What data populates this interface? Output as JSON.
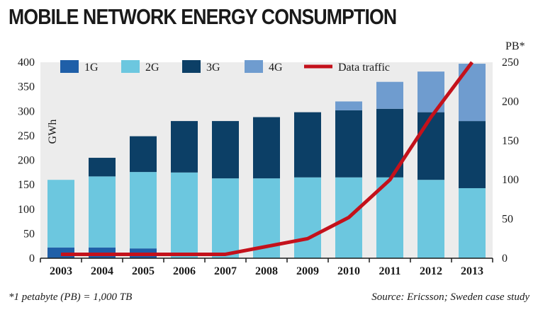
{
  "chart_data": {
    "type": "bar",
    "stacked": true,
    "title": "MOBILE NETWORK ENERGY CONSUMPTION",
    "categories": [
      "2003",
      "2004",
      "2005",
      "2006",
      "2007",
      "2008",
      "2009",
      "2010",
      "2011",
      "2012",
      "2013"
    ],
    "series": [
      {
        "name": "1G",
        "color": "#1f5fa8",
        "values": [
          22,
          22,
          20,
          0,
          0,
          0,
          0,
          0,
          0,
          0,
          0
        ]
      },
      {
        "name": "2G",
        "color": "#6cc7df",
        "values": [
          138,
          145,
          156,
          175,
          163,
          163,
          165,
          165,
          165,
          160,
          143
        ]
      },
      {
        "name": "3G",
        "color": "#0c3f66",
        "values": [
          0,
          38,
          73,
          105,
          117,
          125,
          133,
          137,
          140,
          138,
          137
        ]
      },
      {
        "name": "4G",
        "color": "#6f9ccf",
        "values": [
          0,
          0,
          0,
          0,
          0,
          0,
          0,
          18,
          55,
          83,
          117
        ]
      }
    ],
    "line_series": {
      "name": "Data traffic",
      "color": "#c4111b",
      "axis": "right",
      "values": [
        5,
        5,
        5,
        5,
        5,
        15,
        25,
        52,
        100,
        180,
        250
      ]
    },
    "ylabel": "GWh",
    "ylim": [
      0,
      400
    ],
    "yticks": [
      0,
      50,
      100,
      150,
      200,
      250,
      300,
      350,
      400
    ],
    "y2label": "PB*",
    "y2lim": [
      0,
      250
    ],
    "y2ticks": [
      0,
      50,
      100,
      150,
      200,
      250
    ],
    "legend_position": "top-left",
    "footnote": "*1 petabyte (PB) =  1,000 TB",
    "source": "Source: Ericsson; Sweden case study"
  }
}
